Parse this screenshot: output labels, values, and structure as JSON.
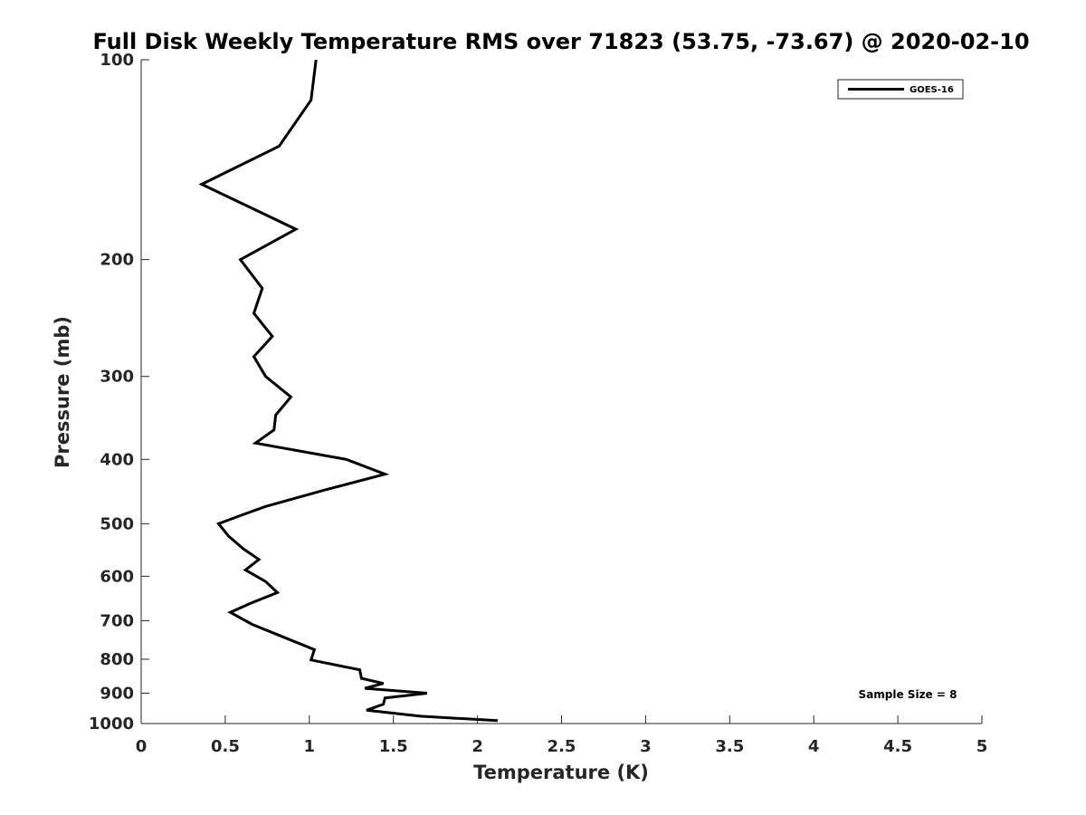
{
  "chart_data": {
    "type": "line",
    "title": "Full Disk Weekly Temperature RMS over 71823 (53.75, -73.67) @ 2020-02-10",
    "xlabel": "Temperature (K)",
    "ylabel": "Pressure (mb)",
    "xlim": [
      0,
      5
    ],
    "ylim": [
      100,
      1000
    ],
    "y_scale": "log",
    "y_reversed": true,
    "grid": false,
    "legend_position": "top-right",
    "x_ticks": [
      0,
      0.5,
      1,
      1.5,
      2,
      2.5,
      3,
      3.5,
      4,
      4.5,
      5
    ],
    "x_tick_labels": [
      "0",
      "0.5",
      "1",
      "1.5",
      "2",
      "2.5",
      "3",
      "3.5",
      "4",
      "4.5",
      "5"
    ],
    "y_ticks": [
      100,
      200,
      300,
      400,
      500,
      600,
      700,
      800,
      900,
      1000
    ],
    "y_tick_labels": [
      "100",
      "200",
      "300",
      "400",
      "500",
      "600",
      "700",
      "800",
      "900",
      "1000"
    ],
    "annotation": "Sample Size = 8",
    "series": [
      {
        "name": "GOES-16",
        "color": "#000000",
        "points": [
          [
            1.04,
            100
          ],
          [
            1.01,
            115
          ],
          [
            0.82,
            135
          ],
          [
            0.36,
            154
          ],
          [
            0.92,
            180
          ],
          [
            0.59,
            200
          ],
          [
            0.72,
            221
          ],
          [
            0.67,
            241
          ],
          [
            0.78,
            261
          ],
          [
            0.67,
            280
          ],
          [
            0.74,
            300
          ],
          [
            0.89,
            322
          ],
          [
            0.8,
            343
          ],
          [
            0.79,
            361
          ],
          [
            0.68,
            378
          ],
          [
            1.22,
            400
          ],
          [
            1.45,
            421
          ],
          [
            1.09,
            445
          ],
          [
            0.74,
            471
          ],
          [
            0.61,
            484
          ],
          [
            0.46,
            500
          ],
          [
            0.52,
            522
          ],
          [
            0.61,
            546
          ],
          [
            0.7,
            566
          ],
          [
            0.62,
            587
          ],
          [
            0.74,
            611
          ],
          [
            0.81,
            635
          ],
          [
            0.65,
            659
          ],
          [
            0.53,
            680
          ],
          [
            0.66,
            709
          ],
          [
            0.87,
            745
          ],
          [
            1.03,
            774
          ],
          [
            1.02,
            788
          ],
          [
            1.01,
            802
          ],
          [
            1.3,
            830
          ],
          [
            1.31,
            855
          ],
          [
            1.44,
            870
          ],
          [
            1.33,
            885
          ],
          [
            1.7,
            900
          ],
          [
            1.45,
            915
          ],
          [
            1.44,
            935
          ],
          [
            1.34,
            955
          ],
          [
            1.66,
            975
          ],
          [
            2.12,
            990
          ]
        ]
      }
    ]
  }
}
